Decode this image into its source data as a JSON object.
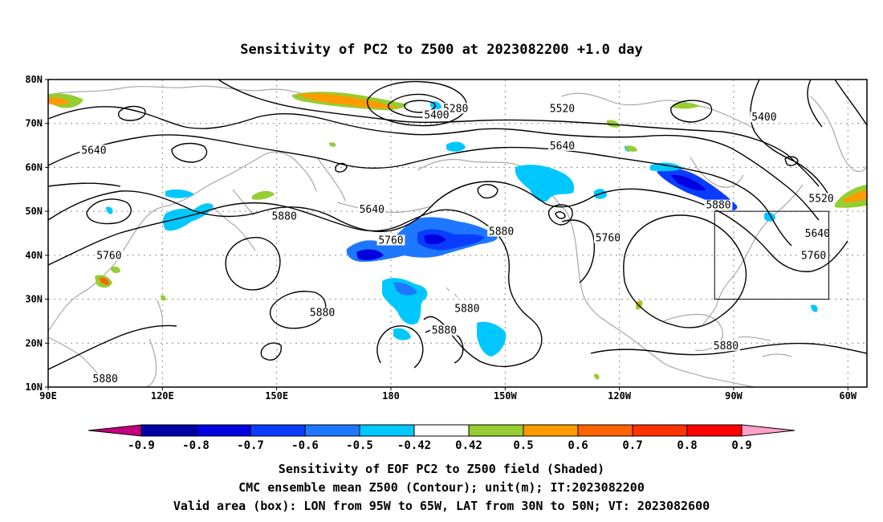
{
  "title": "Sensitivity of PC2 to Z500 at 2023082200 +1.0 day",
  "map": {
    "lon_range": [
      90,
      305
    ],
    "lat_range": [
      10,
      80
    ],
    "lon_ticks": [
      {
        "lon": 90,
        "label": "90E"
      },
      {
        "lon": 120,
        "label": "120E"
      },
      {
        "lon": 150,
        "label": "150E"
      },
      {
        "lon": 180,
        "label": "180"
      },
      {
        "lon": 210,
        "label": "150W"
      },
      {
        "lon": 240,
        "label": "120W"
      },
      {
        "lon": 270,
        "label": "90W"
      },
      {
        "lon": 300,
        "label": "60W"
      }
    ],
    "lat_ticks": [
      {
        "lat": 10,
        "label": "10N"
      },
      {
        "lat": 20,
        "label": "20N"
      },
      {
        "lat": 30,
        "label": "30N"
      },
      {
        "lat": 40,
        "label": "40N"
      },
      {
        "lat": 50,
        "label": "50N"
      },
      {
        "lat": 60,
        "label": "60N"
      },
      {
        "lat": 70,
        "label": "70N"
      },
      {
        "lat": 80,
        "label": "80N"
      }
    ],
    "grid": "dotted",
    "valid_box": {
      "lon_from": 265,
      "lon_to": 295,
      "lat_from": 30,
      "lat_to": 50
    },
    "contour_labels": [
      {
        "text": "5280",
        "lon": 197,
        "lat": 73
      },
      {
        "text": "5400",
        "lon": 192,
        "lat": 71.5
      },
      {
        "text": "5520",
        "lon": 225,
        "lat": 73
      },
      {
        "text": "5400",
        "lon": 278,
        "lat": 71
      },
      {
        "text": "5640",
        "lon": 102,
        "lat": 63.5
      },
      {
        "text": "5640",
        "lon": 225,
        "lat": 64.5
      },
      {
        "text": "5520",
        "lon": 293,
        "lat": 52.5
      },
      {
        "text": "5640",
        "lon": 175,
        "lat": 50
      },
      {
        "text": "5880",
        "lon": 152,
        "lat": 48.5
      },
      {
        "text": "5880",
        "lon": 266,
        "lat": 51
      },
      {
        "text": "5640",
        "lon": 292,
        "lat": 44.5
      },
      {
        "text": "5760",
        "lon": 180,
        "lat": 43
      },
      {
        "text": "5880",
        "lon": 209,
        "lat": 45
      },
      {
        "text": "5760",
        "lon": 237,
        "lat": 43.5
      },
      {
        "text": "5760",
        "lon": 106,
        "lat": 39.5
      },
      {
        "text": "5760",
        "lon": 291,
        "lat": 39.5
      },
      {
        "text": "5880",
        "lon": 162,
        "lat": 26.5
      },
      {
        "text": "5880",
        "lon": 200,
        "lat": 27.5
      },
      {
        "text": "5880",
        "lon": 194,
        "lat": 22.5
      },
      {
        "text": "5880",
        "lon": 268,
        "lat": 19
      },
      {
        "text": "5880",
        "lon": 105,
        "lat": 11.5
      }
    ]
  },
  "colorbar": {
    "labels": [
      "-0.9",
      "-0.8",
      "-0.7",
      "-0.6",
      "-0.5",
      "-0.42",
      "0.42",
      "0.5",
      "0.6",
      "0.7",
      "0.8",
      "0.9"
    ],
    "colors": [
      "#c4007e",
      "#0000a8",
      "#0000e0",
      "#0a3cff",
      "#1e78ff",
      "#00c8ff",
      "#ffffff",
      "#96cd32",
      "#ff9b00",
      "#ff6400",
      "#ff3200",
      "#ff0000",
      "#ffa0c8"
    ]
  },
  "captions": [
    "Sensitivity of EOF PC2 to Z500 field (Shaded)",
    "CMC ensemble mean Z500 (Contour); unit(m); IT:2023082200",
    "Valid area (box): LON from 95W to 65W, LAT from 30N to 50N; VT: 2023082600"
  ]
}
